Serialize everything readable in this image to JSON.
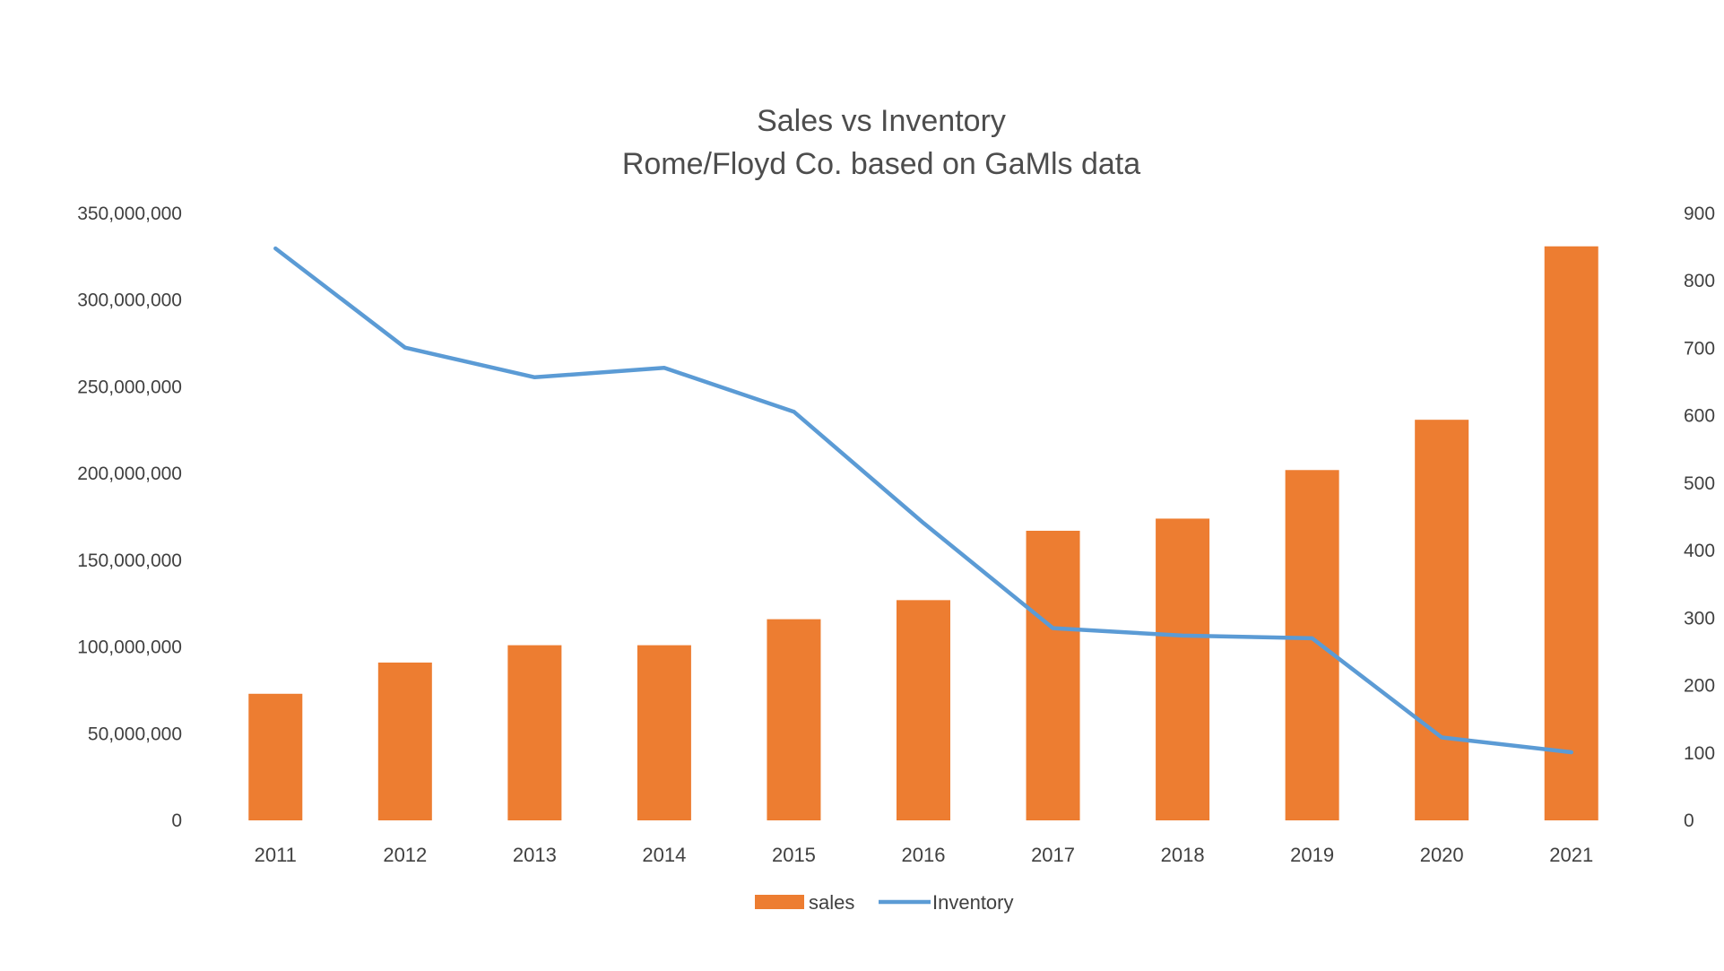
{
  "chart_data": {
    "type": "bar",
    "title": "Sales vs Inventory",
    "subtitle": "Rome/Floyd Co. based on GaMls data",
    "categories": [
      "2011",
      "2012",
      "2013",
      "2014",
      "2015",
      "2016",
      "2017",
      "2018",
      "2019",
      "2020",
      "2021"
    ],
    "series": [
      {
        "name": "sales",
        "type": "bar",
        "axis": "left",
        "color": "#ed7d31",
        "values": [
          73000000,
          91000000,
          101000000,
          101000000,
          116000000,
          127000000,
          167000000,
          174000000,
          202000000,
          231000000,
          331000000
        ]
      },
      {
        "name": "Inventory",
        "type": "line",
        "axis": "right",
        "color": "#5b9bd5",
        "values": [
          848,
          701,
          657,
          671,
          606,
          441,
          285,
          274,
          270,
          123,
          101
        ]
      }
    ],
    "y_left": {
      "min": 0,
      "max": 350000000,
      "ticks": [
        "0",
        "50,000,000",
        "100,000,000",
        "150,000,000",
        "200,000,000",
        "250,000,000",
        "300,000,000",
        "350,000,000"
      ]
    },
    "y_right": {
      "min": 0,
      "max": 900,
      "ticks": [
        "0",
        "100",
        "200",
        "300",
        "400",
        "500",
        "600",
        "700",
        "800",
        "900"
      ]
    },
    "grid": false,
    "legend": "bottom-center"
  }
}
